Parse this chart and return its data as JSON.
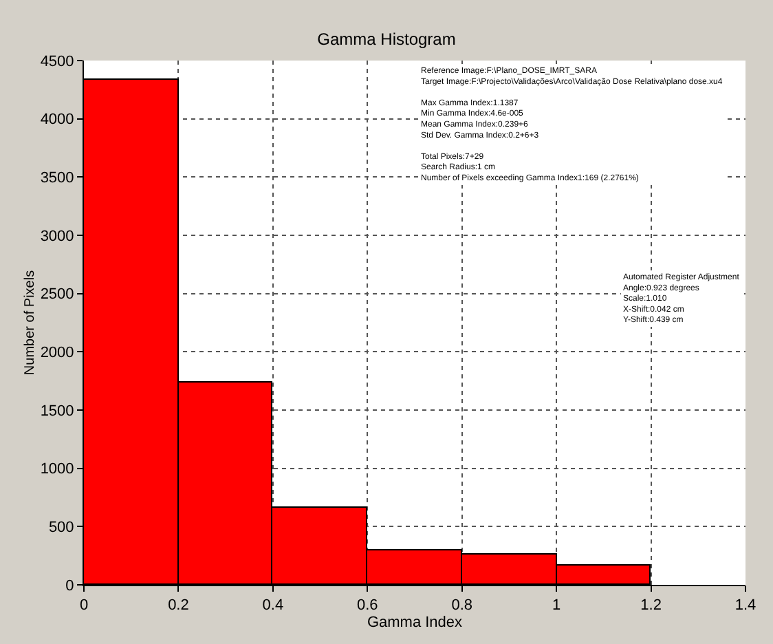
{
  "chart_data": {
    "type": "histogram",
    "title": "Gamma Histogram",
    "xlabel": "Gamma Index",
    "ylabel": "Number of Pixels",
    "bins": [
      0,
      0.2,
      0.4,
      0.6,
      0.8,
      1.0,
      1.2
    ],
    "values": [
      4330,
      1740,
      660,
      290,
      260,
      170
    ],
    "color": "#ff0000",
    "xlim": [
      0,
      1.4
    ],
    "xticks": [
      0,
      0.2,
      0.4,
      0.6,
      0.8,
      1,
      1.2,
      1.4
    ],
    "ylim": [
      0,
      4500
    ],
    "yticks": [
      0,
      500,
      1000,
      1500,
      2000,
      2500,
      3000,
      3500,
      4000,
      4500
    ],
    "grid": true,
    "annotations": [
      "Reference Image:F:\\Plano_DOSE_IMRT_SARA\nTarget Image:F:\\Projecto\\Validações\\Arco\\Validação Dose Relativa\\plano dose.xu4\n\nMax Gamma Index:1.1387\nMin Gamma Index:4.6e-005\nMean Gamma Index:0.239+6\nStd Dev. Gamma Index:0.2+6+3\n\nTotal Pixels:7+29\nSearch Radius:1 cm\nNumber of Pixels exceeding Gamma Index1:169 (2.2761%)",
      "Automated Register Adjustment\nAngle:0.923 degrees\nScale:1.010\nX-Shift:0.042 cm\nY-Shift:0.439 cm"
    ]
  }
}
